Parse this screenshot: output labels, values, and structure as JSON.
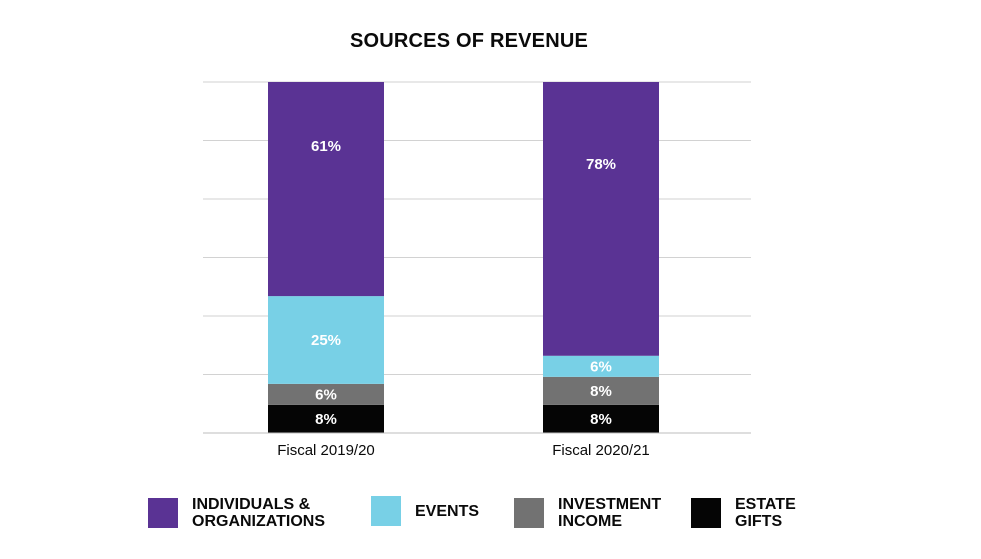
{
  "chart_data": {
    "type": "bar",
    "stacked": true,
    "normalized_percent": true,
    "title": "SOURCES OF REVENUE",
    "xlabel": "",
    "ylabel": "",
    "ylim": [
      0,
      100
    ],
    "grid": true,
    "legend_position": "bottom",
    "categories": [
      "Fiscal 2019/20",
      "Fiscal 2020/21"
    ],
    "series": [
      {
        "name": "ESTATE GIFTS",
        "values": [
          8,
          8
        ],
        "labels": [
          "8%",
          "8%"
        ],
        "color": "#050505"
      },
      {
        "name": "INVESTMENT INCOME",
        "values": [
          6,
          8
        ],
        "labels": [
          "6%",
          "8%"
        ],
        "color": "#727272"
      },
      {
        "name": "EVENTS",
        "values": [
          25,
          6
        ],
        "labels": [
          "25%",
          "6%"
        ],
        "color": "#78d0e6"
      },
      {
        "name": "INDIVIDUALS & ORGANIZATIONS",
        "values": [
          61,
          78
        ],
        "labels": [
          "61%",
          "78%"
        ],
        "color": "#5a3394"
      }
    ]
  },
  "legend": [
    {
      "label": "INDIVIDUALS &\nORGANIZATIONS",
      "color": "#5a3394"
    },
    {
      "label": "EVENTS",
      "color": "#78d0e6"
    },
    {
      "label": "INVESTMENT\nINCOME",
      "color": "#727272"
    },
    {
      "label": "ESTATE\nGIFTS",
      "color": "#050505"
    }
  ]
}
